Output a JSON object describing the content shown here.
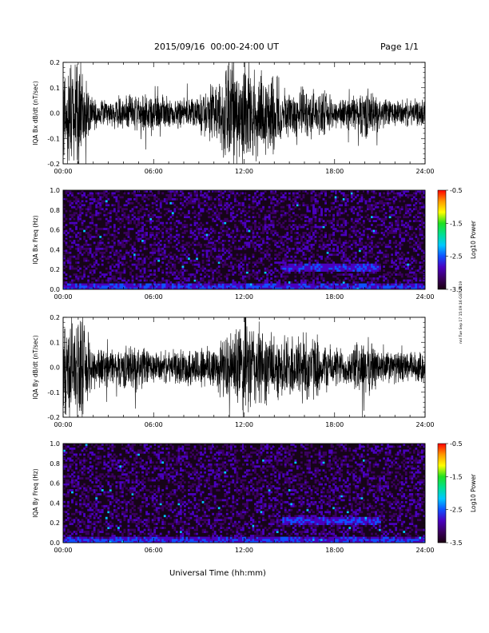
{
  "header": {
    "title": "2015/09/16  00:00-24:00 UT",
    "page": "Page 1/1"
  },
  "stamp": "nnl Tue Sep 17 15:09:16 GST 2019",
  "x_axis_title": "Universal Time (hh:mm)",
  "colors": {
    "trace": "#000000",
    "spectrogram_background": "#160418",
    "colorbar": [
      "#1a0010",
      "#3a0060",
      "#4a00c0",
      "#1050ff",
      "#00c8ff",
      "#00e090",
      "#20e020",
      "#ffff00",
      "#ff9900",
      "#ff0000"
    ]
  },
  "colorbar": {
    "label": "Log10 Power",
    "ticks": [
      "-0.5",
      "-1.5",
      "-2.5",
      "-3.5"
    ]
  },
  "chart_data": [
    {
      "type": "line",
      "ylabel": "IQA Bx dB/dt (nT/sec)",
      "xlim": [
        "00:00",
        "24:00"
      ],
      "ylim": [
        -0.2,
        0.2
      ],
      "x_ticks": [
        "00:00",
        "06:00",
        "12:00",
        "18:00",
        "24:00"
      ],
      "y_ticks": [
        "0.2",
        "0.1",
        "0.0",
        "-0.1",
        "-0.2"
      ],
      "x_hours": [
        0,
        1,
        2,
        3,
        4,
        5,
        6,
        7,
        8,
        9,
        10,
        11,
        12,
        13,
        14,
        15,
        16,
        17,
        18,
        19,
        20,
        21,
        22,
        23,
        24
      ],
      "amplitude_envelope": [
        0.2,
        0.2,
        0.06,
        0.05,
        0.06,
        0.07,
        0.08,
        0.06,
        0.06,
        0.07,
        0.12,
        0.2,
        0.2,
        0.16,
        0.15,
        0.08,
        0.1,
        0.08,
        0.06,
        0.06,
        0.1,
        0.06,
        0.05,
        0.05,
        0.05
      ]
    },
    {
      "type": "heatmap",
      "ylabel": "IQA Bx Freq (Hz)",
      "xlim": [
        "00:00",
        "24:00"
      ],
      "ylim": [
        0.0,
        1.0
      ],
      "x_ticks": [
        "00:00",
        "06:00",
        "12:00",
        "18:00",
        "24:00"
      ],
      "y_ticks": [
        "1.0",
        "0.8",
        "0.6",
        "0.4",
        "0.2",
        "0.0"
      ],
      "zlabel": "Log10 Power",
      "zlim": [
        -3.5,
        -0.5
      ],
      "features": [
        {
          "t_start_hours": 0,
          "t_end_hours": 24,
          "freq_hz": 0.02,
          "log_power": -2.3
        },
        {
          "t_start_hours": 14.5,
          "t_end_hours": 21,
          "freq_hz": 0.22,
          "log_power": -2.3
        }
      ]
    },
    {
      "type": "line",
      "ylabel": "IQA By dB/dt (nT/sec)",
      "xlim": [
        "00:00",
        "24:00"
      ],
      "ylim": [
        -0.2,
        0.2
      ],
      "x_ticks": [
        "00:00",
        "06:00",
        "12:00",
        "18:00",
        "24:00"
      ],
      "y_ticks": [
        "0.2",
        "0.1",
        "0.0",
        "-0.1",
        "-0.2"
      ],
      "x_hours": [
        0,
        1,
        2,
        3,
        4,
        5,
        6,
        7,
        8,
        9,
        10,
        11,
        12,
        13,
        14,
        15,
        16,
        17,
        18,
        19,
        20,
        21,
        22,
        23,
        24
      ],
      "amplitude_envelope": [
        0.2,
        0.2,
        0.09,
        0.07,
        0.08,
        0.09,
        0.06,
        0.06,
        0.07,
        0.08,
        0.1,
        0.12,
        0.2,
        0.16,
        0.12,
        0.12,
        0.15,
        0.1,
        0.08,
        0.07,
        0.12,
        0.07,
        0.06,
        0.06,
        0.06
      ]
    },
    {
      "type": "heatmap",
      "ylabel": "IQA By Freq (Hz)",
      "xlim": [
        "00:00",
        "24:00"
      ],
      "ylim": [
        0.0,
        1.0
      ],
      "x_ticks": [
        "00:00",
        "06:00",
        "12:00",
        "18:00",
        "24:00"
      ],
      "y_ticks": [
        "1.0",
        "0.8",
        "0.6",
        "0.4",
        "0.2",
        "0.0"
      ],
      "zlabel": "Log10 Power",
      "zlim": [
        -3.5,
        -0.5
      ],
      "features": [
        {
          "t_start_hours": 0,
          "t_end_hours": 24,
          "freq_hz": 0.02,
          "log_power": -2.3
        },
        {
          "t_start_hours": 14.5,
          "t_end_hours": 21,
          "freq_hz": 0.22,
          "log_power": -2.3
        }
      ]
    }
  ]
}
